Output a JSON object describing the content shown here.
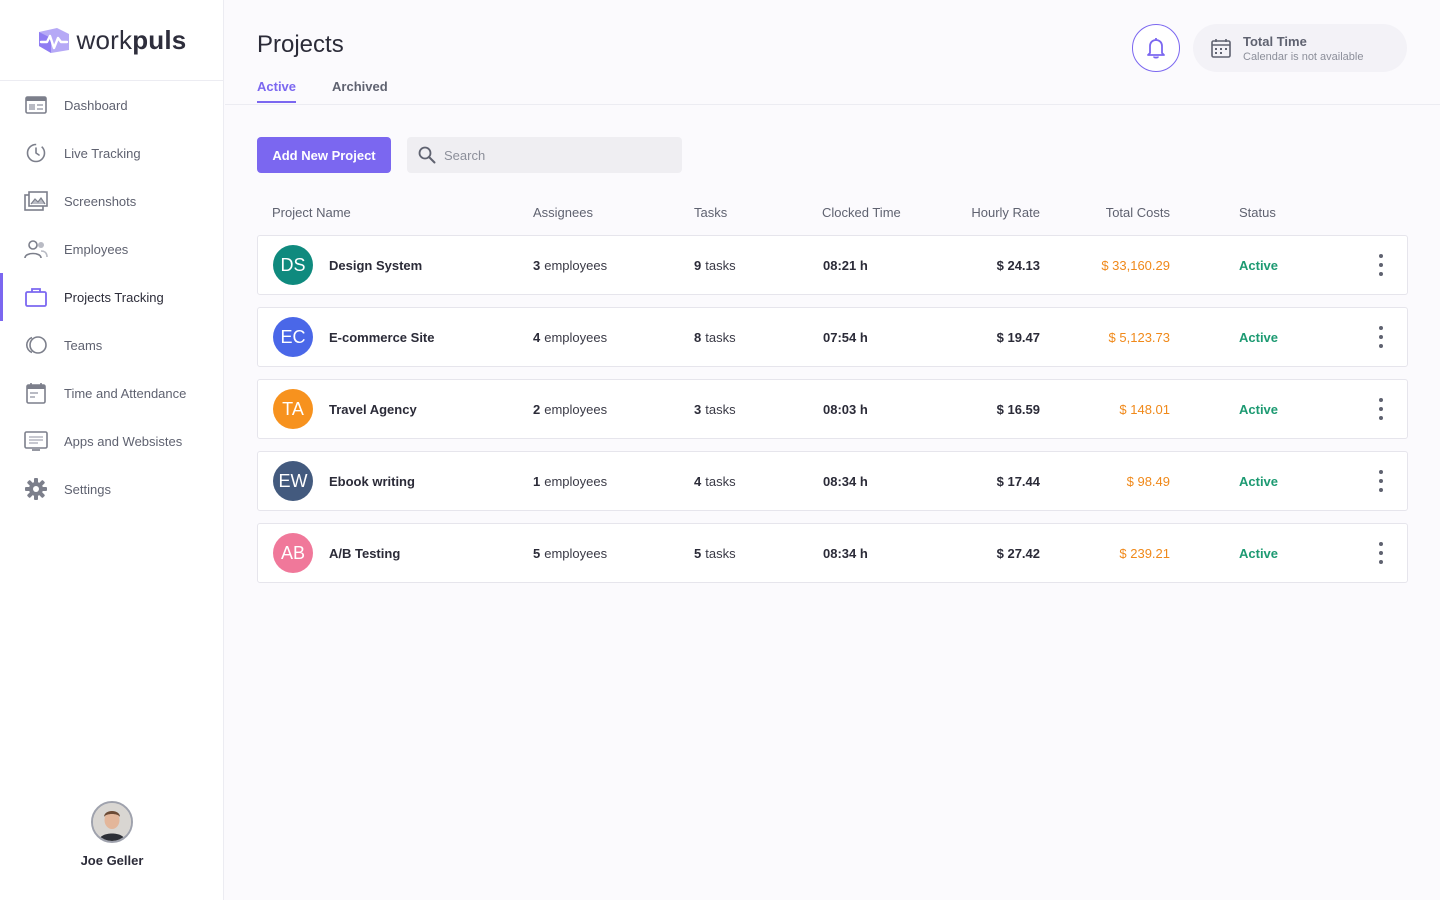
{
  "brand": {
    "name_prefix": "work",
    "name_suffix": "puls",
    "accent": "#7b67f0"
  },
  "sidebar": {
    "items": [
      {
        "label": "Dashboard",
        "icon": "dashboard-icon"
      },
      {
        "label": "Live Tracking",
        "icon": "live-tracking-icon"
      },
      {
        "label": "Screenshots",
        "icon": "screenshots-icon"
      },
      {
        "label": "Employees",
        "icon": "employees-icon"
      },
      {
        "label": "Projects Tracking",
        "icon": "briefcase-icon",
        "active": true
      },
      {
        "label": "Teams",
        "icon": "teams-icon"
      },
      {
        "label": "Time and Attendance",
        "icon": "calendar-icon"
      },
      {
        "label": "Apps and Websistes",
        "icon": "apps-icon"
      },
      {
        "label": "Settings",
        "icon": "gear-icon"
      }
    ],
    "user": {
      "name": "Joe Geller"
    }
  },
  "header": {
    "title": "Projects",
    "tabs": [
      {
        "label": "Active",
        "active": true
      },
      {
        "label": "Archived"
      }
    ],
    "total_time": {
      "title": "Total Time",
      "subtitle": "Calendar is not available"
    }
  },
  "toolbar": {
    "add_label": "Add New Project",
    "search_placeholder": "Search"
  },
  "table": {
    "columns": [
      "Project Name",
      "Assignees",
      "Tasks",
      "Clocked Time",
      "Hourly Rate",
      "Total Costs",
      "Status"
    ],
    "rows": [
      {
        "initials": "DS",
        "color": "#0f8a7e",
        "name": "Design System",
        "assignees": "3",
        "assignees_unit": "employees",
        "tasks": "9",
        "tasks_unit": "tasks",
        "clocked": "08:21 h",
        "rate": "$ 24.13",
        "cost": "$ 33,160.29",
        "status": "Active"
      },
      {
        "initials": "EC",
        "color": "#4a67e8",
        "name": "E-commerce Site",
        "assignees": "4",
        "assignees_unit": "employees",
        "tasks": "8",
        "tasks_unit": "tasks",
        "clocked": "07:54 h",
        "rate": "$ 19.47",
        "cost": "$ 5,123.73",
        "status": "Active"
      },
      {
        "initials": "TA",
        "color": "#f7921e",
        "name": "Travel Agency",
        "assignees": "2",
        "assignees_unit": "employees",
        "tasks": "3",
        "tasks_unit": "tasks",
        "clocked": "08:03 h",
        "rate": "$ 16.59",
        "cost": "$ 148.01",
        "status": "Active"
      },
      {
        "initials": "EW",
        "color": "#435a7e",
        "name": "Ebook writing",
        "assignees": "1",
        "assignees_unit": "employees",
        "tasks": "4",
        "tasks_unit": "tasks",
        "clocked": "08:34 h",
        "rate": "$ 17.44",
        "cost": "$ 98.49",
        "status": "Active"
      },
      {
        "initials": "AB",
        "color": "#f0789a",
        "name": "A/B Testing",
        "assignees": "5",
        "assignees_unit": "employees",
        "tasks": "5",
        "tasks_unit": "tasks",
        "clocked": "08:34 h",
        "rate": "$ 27.42",
        "cost": "$ 239.21",
        "status": "Active"
      }
    ]
  }
}
